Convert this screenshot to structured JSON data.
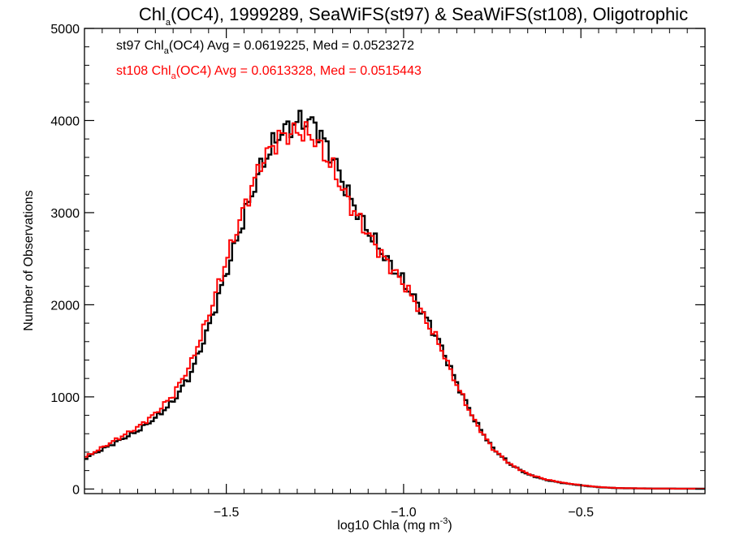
{
  "chart_data": {
    "type": "line",
    "step": true,
    "title": {
      "main": "Chl",
      "sub": "a",
      "rest": "(OC4), 1999289, SeaWiFS(st97) & SeaWiFS(st108), Oligotrophic"
    },
    "xlabel": {
      "main": "log10 Chla (mg m",
      "sup": "-3",
      "end": ")"
    },
    "ylabel": "Number of Observations",
    "xlim": [
      -1.9,
      -0.15
    ],
    "ylim": [
      -50,
      5000
    ],
    "xticks": [
      -1.5,
      -1.0,
      -0.5
    ],
    "xtick_labels": [
      "−1.5",
      "−1.0",
      "−0.5"
    ],
    "yticks": [
      0,
      1000,
      2000,
      3000,
      4000,
      5000
    ],
    "ytick_labels": [
      "0",
      "1000",
      "2000",
      "3000",
      "4000",
      "5000"
    ],
    "grid": false,
    "legend": "top-left",
    "annotations": [
      {
        "prefix": "st97 Chl",
        "sub": "a",
        "suffix": "(OC4) Avg = 0.0619225, Med = 0.0523272",
        "color": "#000000"
      },
      {
        "prefix": "st108 Chl",
        "sub": "a",
        "suffix": "(OC4) Avg = 0.0613328, Med = 0.0515443",
        "color": "#ff0000"
      }
    ],
    "series": [
      {
        "name": "st97",
        "color": "#000000",
        "x": [
          -1.9,
          -1.85,
          -1.8,
          -1.75,
          -1.7,
          -1.65,
          -1.6,
          -1.55,
          -1.5,
          -1.45,
          -1.4,
          -1.35,
          -1.3,
          -1.28,
          -1.25,
          -1.2,
          -1.15,
          -1.1,
          -1.05,
          -1.0,
          -0.95,
          -0.9,
          -0.85,
          -0.8,
          -0.75,
          -0.7,
          -0.65,
          -0.6,
          -0.55,
          -0.5,
          -0.45,
          -0.4,
          -0.3,
          -0.15
        ],
        "y": [
          330,
          430,
          530,
          630,
          770,
          950,
          1250,
          1750,
          2350,
          2950,
          3520,
          3860,
          3980,
          4000,
          3960,
          3600,
          3150,
          2800,
          2500,
          2250,
          1950,
          1600,
          1150,
          750,
          450,
          270,
          160,
          100,
          65,
          40,
          20,
          10,
          5,
          3
        ]
      },
      {
        "name": "st108",
        "color": "#ff0000",
        "x": [
          -1.9,
          -1.85,
          -1.8,
          -1.75,
          -1.7,
          -1.65,
          -1.6,
          -1.55,
          -1.5,
          -1.45,
          -1.4,
          -1.35,
          -1.3,
          -1.28,
          -1.25,
          -1.2,
          -1.15,
          -1.1,
          -1.05,
          -1.0,
          -0.95,
          -0.9,
          -0.85,
          -0.8,
          -0.75,
          -0.7,
          -0.65,
          -0.6,
          -0.55,
          -0.5,
          -0.45,
          -0.4,
          -0.3,
          -0.15
        ],
        "y": [
          340,
          450,
          560,
          670,
          820,
          1020,
          1360,
          1880,
          2480,
          3050,
          3560,
          3820,
          3880,
          3870,
          3800,
          3480,
          3080,
          2770,
          2480,
          2230,
          1920,
          1580,
          1130,
          740,
          445,
          270,
          165,
          105,
          68,
          42,
          22,
          11,
          5,
          3
        ]
      }
    ]
  }
}
